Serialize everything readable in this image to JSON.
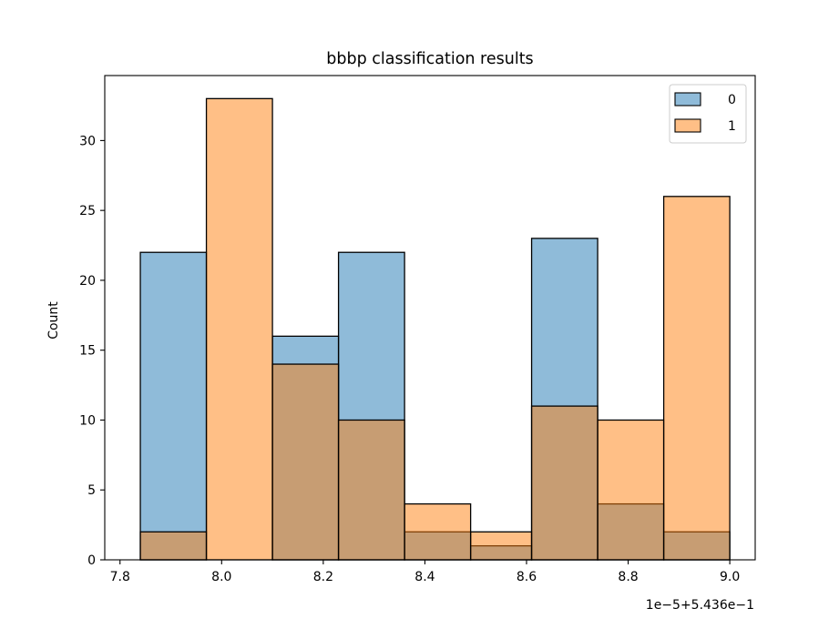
{
  "chart_data": {
    "type": "bar",
    "title": "bbbp classification results",
    "xlabel": "",
    "ylabel": "Count",
    "offset_label": "1e−5+5.436e−1",
    "xlim": [
      7.77,
      9.05
    ],
    "ylim": [
      0,
      34.65
    ],
    "x_ticks": [
      7.8,
      8.0,
      8.2,
      8.4,
      8.6,
      8.8,
      9.0
    ],
    "x_tick_labels": [
      "7.8",
      "8.0",
      "8.2",
      "8.4",
      "8.6",
      "8.8",
      "9.0"
    ],
    "y_ticks": [
      0,
      5,
      10,
      15,
      20,
      25,
      30
    ],
    "y_tick_labels": [
      "0",
      "5",
      "10",
      "15",
      "20",
      "25",
      "30"
    ],
    "legend_placement": "top-right",
    "grid": false,
    "series": [
      {
        "name": "0",
        "color": "#1f77b4",
        "bars": [
          {
            "x0": 7.84,
            "x1": 7.97,
            "count": 22
          },
          {
            "x0": 7.97,
            "x1": 8.1,
            "count": 0
          },
          {
            "x0": 8.1,
            "x1": 8.23,
            "count": 16
          },
          {
            "x0": 8.23,
            "x1": 8.36,
            "count": 22
          },
          {
            "x0": 8.36,
            "x1": 8.49,
            "count": 2
          },
          {
            "x0": 8.49,
            "x1": 8.61,
            "count": 1
          },
          {
            "x0": 8.61,
            "x1": 8.74,
            "count": 23
          },
          {
            "x0": 8.74,
            "x1": 8.87,
            "count": 4
          },
          {
            "x0": 8.87,
            "x1": 9.0,
            "count": 2
          }
        ]
      },
      {
        "name": "1",
        "color": "#ff7f0e",
        "bars": [
          {
            "x0": 7.84,
            "x1": 7.97,
            "count": 2
          },
          {
            "x0": 7.97,
            "x1": 8.1,
            "count": 33
          },
          {
            "x0": 8.1,
            "x1": 8.23,
            "count": 14
          },
          {
            "x0": 8.23,
            "x1": 8.36,
            "count": 10
          },
          {
            "x0": 8.36,
            "x1": 8.49,
            "count": 4
          },
          {
            "x0": 8.49,
            "x1": 8.61,
            "count": 2
          },
          {
            "x0": 8.61,
            "x1": 8.74,
            "count": 11
          },
          {
            "x0": 8.74,
            "x1": 8.87,
            "count": 10
          },
          {
            "x0": 8.87,
            "x1": 9.0,
            "count": 26
          }
        ]
      }
    ]
  }
}
